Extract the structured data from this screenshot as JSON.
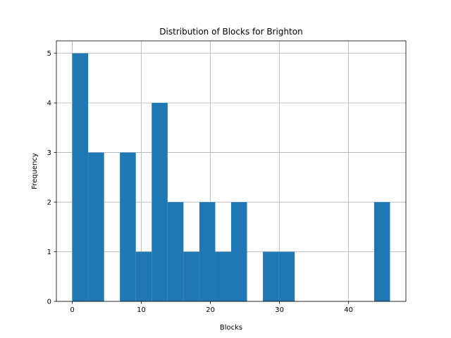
{
  "chart_data": {
    "type": "bar",
    "title": "Distribution of Blocks for Brighton",
    "xlabel": "Blocks",
    "ylabel": "Frequency",
    "xlim": [
      -2.3,
      48.3
    ],
    "ylim": [
      0,
      5.25
    ],
    "xticks": [
      0,
      10,
      20,
      30,
      40
    ],
    "yticks": [
      0,
      1,
      2,
      3,
      4,
      5
    ],
    "grid": true,
    "bar_color": "#1f77b4",
    "bins": [
      {
        "x0": 0.0,
        "x1": 2.3,
        "value": 5
      },
      {
        "x0": 2.3,
        "x1": 4.6,
        "value": 3
      },
      {
        "x0": 4.6,
        "x1": 6.9,
        "value": 0
      },
      {
        "x0": 6.9,
        "x1": 9.2,
        "value": 3
      },
      {
        "x0": 9.2,
        "x1": 11.5,
        "value": 1
      },
      {
        "x0": 11.5,
        "x1": 13.8,
        "value": 4
      },
      {
        "x0": 13.8,
        "x1": 16.1,
        "value": 2
      },
      {
        "x0": 16.1,
        "x1": 18.4,
        "value": 1
      },
      {
        "x0": 18.4,
        "x1": 20.7,
        "value": 2
      },
      {
        "x0": 20.7,
        "x1": 23.0,
        "value": 1
      },
      {
        "x0": 23.0,
        "x1": 25.3,
        "value": 2
      },
      {
        "x0": 25.3,
        "x1": 27.6,
        "value": 0
      },
      {
        "x0": 27.6,
        "x1": 29.9,
        "value": 1
      },
      {
        "x0": 29.9,
        "x1": 32.2,
        "value": 1
      },
      {
        "x0": 32.2,
        "x1": 34.5,
        "value": 0
      },
      {
        "x0": 34.5,
        "x1": 36.8,
        "value": 0
      },
      {
        "x0": 36.8,
        "x1": 39.1,
        "value": 0
      },
      {
        "x0": 39.1,
        "x1": 41.4,
        "value": 0
      },
      {
        "x0": 41.4,
        "x1": 43.7,
        "value": 0
      },
      {
        "x0": 43.7,
        "x1": 46.0,
        "value": 2
      }
    ]
  }
}
